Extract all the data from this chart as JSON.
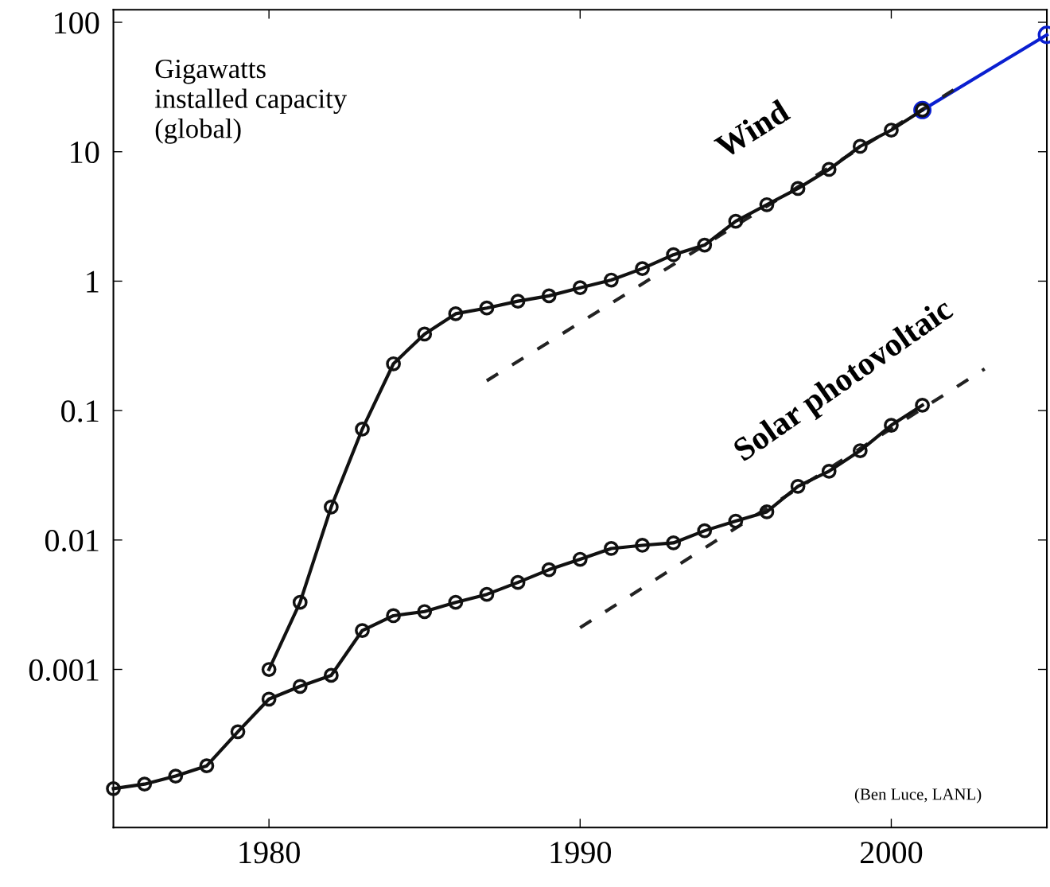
{
  "chart_data": {
    "type": "line",
    "log": "y",
    "xlim": [
      1975,
      2005
    ],
    "ylim": [
      6e-05,
      125
    ],
    "xticks": [
      1980,
      1990,
      2000
    ],
    "yticks": [
      {
        "value": 0.001,
        "label": "0.001"
      },
      {
        "value": 0.01,
        "label": "0.01"
      },
      {
        "value": 0.1,
        "label": "0.1"
      },
      {
        "value": 1,
        "label": "1"
      },
      {
        "value": 10,
        "label": "10"
      },
      {
        "value": 100,
        "label": "100"
      }
    ],
    "grid": false,
    "legend": false,
    "marker": "circle",
    "line_style": "solid",
    "series": [
      {
        "name": "Wind",
        "color": "#111111",
        "x": [
          1980,
          1981,
          1982,
          1983,
          1984,
          1985,
          1986,
          1987,
          1988,
          1989,
          1990,
          1991,
          1992,
          1993,
          1994,
          1995,
          1996,
          1997,
          1998,
          1999,
          2000,
          2001
        ],
        "values": [
          0.001,
          0.0033,
          0.018,
          0.072,
          0.23,
          0.39,
          0.56,
          0.62,
          0.7,
          0.77,
          0.89,
          1.02,
          1.25,
          1.6,
          1.9,
          2.9,
          3.9,
          5.2,
          7.3,
          11,
          14.7,
          21
        ]
      },
      {
        "name": "Solar photovoltaic",
        "color": "#111111",
        "x": [
          1975,
          1976,
          1977,
          1978,
          1979,
          1980,
          1981,
          1982,
          1983,
          1984,
          1985,
          1986,
          1987,
          1988,
          1989,
          1990,
          1991,
          1992,
          1993,
          1994,
          1995,
          1996,
          1997,
          1998,
          1999,
          2000,
          2001
        ],
        "values": [
          0.00012,
          0.00013,
          0.00015,
          0.00018,
          0.00033,
          0.00059,
          0.00074,
          0.0009,
          0.002,
          0.0026,
          0.0028,
          0.0033,
          0.0038,
          0.0047,
          0.0059,
          0.0071,
          0.0086,
          0.0091,
          0.0095,
          0.0118,
          0.014,
          0.0165,
          0.026,
          0.034,
          0.049,
          0.077,
          0.11
        ]
      },
      {
        "color": "#0a1fd0",
        "x": [
          2001,
          2005
        ],
        "values": [
          21,
          80
        ]
      },
      {
        "color": "#222222",
        "x": [
          1987,
          2002
        ],
        "values": [
          0.17,
          30
        ],
        "marker": "none",
        "line_style": "dashed"
      },
      {
        "color": "#222222",
        "x": [
          1990,
          2003
        ],
        "values": [
          0.0021,
          0.21
        ],
        "marker": "none",
        "line_style": "dashed"
      }
    ],
    "annotations": [
      "Gigawatts\ninstalled capacity\n(global)",
      "(Ben Luce, LANL)"
    ]
  }
}
